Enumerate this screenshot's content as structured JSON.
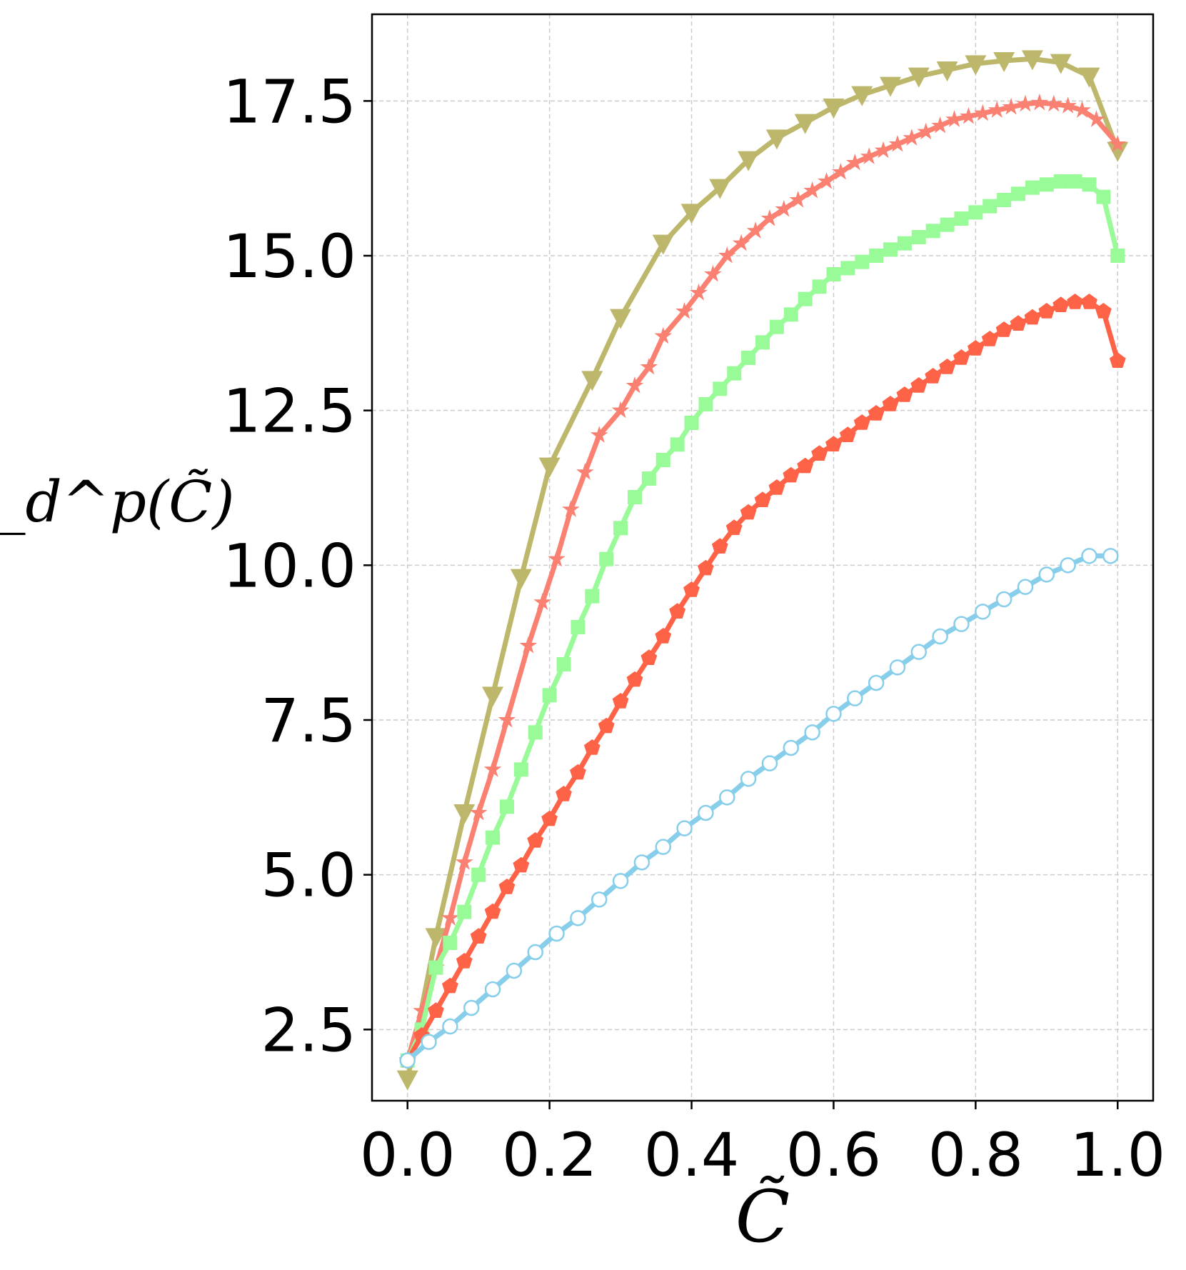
{
  "chart_data": {
    "type": "line",
    "xlabel": "C̃",
    "ylabel": "ξ_d^p(C̃)",
    "xlim": [
      -0.05,
      1.05
    ],
    "ylim": [
      1.35,
      18.9
    ],
    "grid": true,
    "x_ticks": [
      "0.0",
      "0.2",
      "0.4",
      "0.6",
      "0.8",
      "1.0"
    ],
    "y_ticks": [
      "2.5",
      "5.0",
      "7.5",
      "10.0",
      "12.5",
      "15.0",
      "17.5"
    ],
    "series": [
      {
        "color": "#bdb76b",
        "marker": "triangle-down",
        "x": [
          0.0,
          0.04,
          0.08,
          0.12,
          0.16,
          0.2,
          0.26,
          0.3,
          0.36,
          0.4,
          0.44,
          0.48,
          0.52,
          0.56,
          0.6,
          0.64,
          0.68,
          0.72,
          0.76,
          0.8,
          0.84,
          0.88,
          0.92,
          0.96,
          1.0
        ],
        "y": [
          1.7,
          4.0,
          6.0,
          7.9,
          9.8,
          11.6,
          13.0,
          14.0,
          15.2,
          15.7,
          16.1,
          16.55,
          16.9,
          17.15,
          17.4,
          17.6,
          17.75,
          17.9,
          18.0,
          18.1,
          18.15,
          18.18,
          18.12,
          17.9,
          16.7
        ]
      },
      {
        "color": "#fa8072",
        "marker": "star",
        "x": [
          0.0,
          0.02,
          0.04,
          0.06,
          0.08,
          0.1,
          0.12,
          0.14,
          0.17,
          0.19,
          0.21,
          0.23,
          0.25,
          0.27,
          0.3,
          0.32,
          0.34,
          0.36,
          0.39,
          0.41,
          0.43,
          0.45,
          0.47,
          0.49,
          0.51,
          0.53,
          0.55,
          0.57,
          0.59,
          0.61,
          0.63,
          0.65,
          0.67,
          0.69,
          0.71,
          0.73,
          0.75,
          0.77,
          0.79,
          0.81,
          0.83,
          0.85,
          0.87,
          0.89,
          0.91,
          0.93,
          0.95,
          0.97,
          1.0
        ],
        "y": [
          2.0,
          2.8,
          3.5,
          4.3,
          5.2,
          6.0,
          6.7,
          7.5,
          8.7,
          9.4,
          10.1,
          10.9,
          11.5,
          12.1,
          12.5,
          12.9,
          13.2,
          13.7,
          14.1,
          14.4,
          14.7,
          15.0,
          15.2,
          15.4,
          15.6,
          15.75,
          15.9,
          16.05,
          16.2,
          16.35,
          16.5,
          16.6,
          16.7,
          16.8,
          16.9,
          17.0,
          17.1,
          17.2,
          17.25,
          17.3,
          17.35,
          17.4,
          17.45,
          17.47,
          17.45,
          17.42,
          17.35,
          17.2,
          16.8
        ]
      },
      {
        "color": "#98fb98",
        "marker": "square",
        "x": [
          0.0,
          0.02,
          0.04,
          0.06,
          0.08,
          0.1,
          0.12,
          0.14,
          0.16,
          0.18,
          0.2,
          0.22,
          0.24,
          0.26,
          0.28,
          0.3,
          0.32,
          0.34,
          0.36,
          0.38,
          0.4,
          0.42,
          0.44,
          0.46,
          0.48,
          0.5,
          0.52,
          0.54,
          0.56,
          0.58,
          0.6,
          0.62,
          0.64,
          0.66,
          0.68,
          0.7,
          0.72,
          0.74,
          0.76,
          0.78,
          0.8,
          0.82,
          0.84,
          0.86,
          0.88,
          0.9,
          0.92,
          0.94,
          0.96,
          0.98,
          1.0
        ],
        "y": [
          2.0,
          2.5,
          3.5,
          3.9,
          4.4,
          5.0,
          5.6,
          6.1,
          6.7,
          7.3,
          7.9,
          8.4,
          9.0,
          9.5,
          10.1,
          10.6,
          11.1,
          11.4,
          11.7,
          11.95,
          12.3,
          12.6,
          12.85,
          13.1,
          13.35,
          13.6,
          13.85,
          14.05,
          14.3,
          14.5,
          14.7,
          14.8,
          14.9,
          15.0,
          15.1,
          15.2,
          15.3,
          15.4,
          15.5,
          15.6,
          15.7,
          15.8,
          15.9,
          16.0,
          16.1,
          16.15,
          16.2,
          16.2,
          16.15,
          15.95,
          15.0
        ]
      },
      {
        "color": "#ff6347",
        "marker": "pentagon",
        "x": [
          0.0,
          0.02,
          0.04,
          0.06,
          0.08,
          0.1,
          0.12,
          0.14,
          0.16,
          0.18,
          0.2,
          0.22,
          0.24,
          0.26,
          0.28,
          0.3,
          0.32,
          0.34,
          0.36,
          0.38,
          0.4,
          0.42,
          0.44,
          0.46,
          0.48,
          0.5,
          0.52,
          0.54,
          0.56,
          0.58,
          0.6,
          0.62,
          0.64,
          0.66,
          0.68,
          0.7,
          0.72,
          0.74,
          0.76,
          0.78,
          0.8,
          0.82,
          0.84,
          0.86,
          0.88,
          0.9,
          0.92,
          0.94,
          0.96,
          0.98,
          1.0
        ],
        "y": [
          2.0,
          2.4,
          2.8,
          3.2,
          3.6,
          4.0,
          4.4,
          4.8,
          5.15,
          5.55,
          5.9,
          6.3,
          6.65,
          7.05,
          7.4,
          7.8,
          8.15,
          8.5,
          8.85,
          9.25,
          9.6,
          9.95,
          10.3,
          10.6,
          10.85,
          11.05,
          11.25,
          11.45,
          11.6,
          11.8,
          11.95,
          12.1,
          12.3,
          12.45,
          12.6,
          12.75,
          12.9,
          13.05,
          13.2,
          13.35,
          13.5,
          13.65,
          13.8,
          13.9,
          14.0,
          14.1,
          14.2,
          14.25,
          14.25,
          14.1,
          13.3
        ]
      },
      {
        "color": "#87ceeb",
        "marker": "circle-open",
        "x": [
          0.0,
          0.03,
          0.06,
          0.09,
          0.12,
          0.15,
          0.18,
          0.21,
          0.24,
          0.27,
          0.3,
          0.33,
          0.36,
          0.39,
          0.42,
          0.45,
          0.48,
          0.51,
          0.54,
          0.57,
          0.6,
          0.63,
          0.66,
          0.69,
          0.72,
          0.75,
          0.78,
          0.81,
          0.84,
          0.87,
          0.9,
          0.93,
          0.96,
          0.99
        ],
        "y": [
          2.0,
          2.3,
          2.55,
          2.85,
          3.15,
          3.45,
          3.75,
          4.05,
          4.3,
          4.6,
          4.9,
          5.2,
          5.45,
          5.75,
          6.0,
          6.25,
          6.55,
          6.8,
          7.05,
          7.3,
          7.6,
          7.85,
          8.1,
          8.35,
          8.6,
          8.85,
          9.05,
          9.25,
          9.45,
          9.65,
          9.85,
          10.0,
          10.15,
          10.15
        ]
      }
    ]
  }
}
